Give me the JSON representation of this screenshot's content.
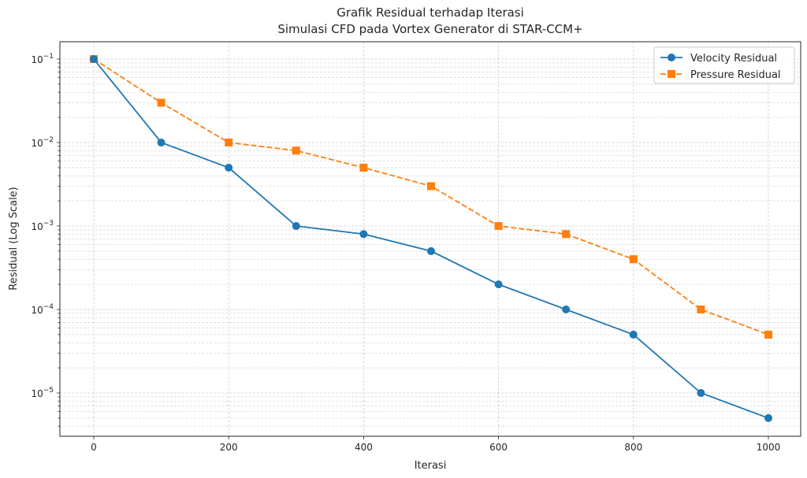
{
  "chart_data": {
    "type": "line",
    "title": [
      "Grafik Residual terhadap Iterasi",
      "Simulasi CFD pada Vortex Generator di STAR-CCM+"
    ],
    "xlabel": "Iterasi",
    "ylabel": "Residual (Log Scale)",
    "yscale": "log",
    "xlim": [
      -50,
      1050
    ],
    "ylim": [
      3e-06,
      0.16
    ],
    "grid": true,
    "legend_position": "top-right",
    "x": [
      0,
      100,
      200,
      300,
      400,
      500,
      600,
      700,
      800,
      900,
      1000
    ],
    "x_ticks": [
      {
        "value": 0,
        "label": "0"
      },
      {
        "value": 200,
        "label": "200"
      },
      {
        "value": 400,
        "label": "400"
      },
      {
        "value": 600,
        "label": "600"
      },
      {
        "value": 800,
        "label": "800"
      },
      {
        "value": 1000,
        "label": "1000"
      }
    ],
    "y_ticks": [
      {
        "exp": -1,
        "base": "10",
        "sup": "−1"
      },
      {
        "exp": -2,
        "base": "10",
        "sup": "−2"
      },
      {
        "exp": -3,
        "base": "10",
        "sup": "−3"
      },
      {
        "exp": -4,
        "base": "10",
        "sup": "−4"
      },
      {
        "exp": -5,
        "base": "10",
        "sup": "−5"
      }
    ],
    "series": [
      {
        "name": "Velocity Residual",
        "color": "#1f77b4",
        "marker": "circle",
        "linestyle": "solid",
        "values": [
          0.1,
          0.01,
          0.005,
          0.001,
          0.0008,
          0.0005,
          0.0002,
          0.0001,
          5e-05,
          1e-05,
          5e-06
        ]
      },
      {
        "name": "Pressure Residual",
        "color": "#ff7f0e",
        "marker": "square",
        "linestyle": "dashed",
        "values": [
          0.1,
          0.03,
          0.01,
          0.008,
          0.005,
          0.003,
          0.001,
          0.0008,
          0.0004,
          0.0001,
          5e-05
        ]
      }
    ]
  }
}
